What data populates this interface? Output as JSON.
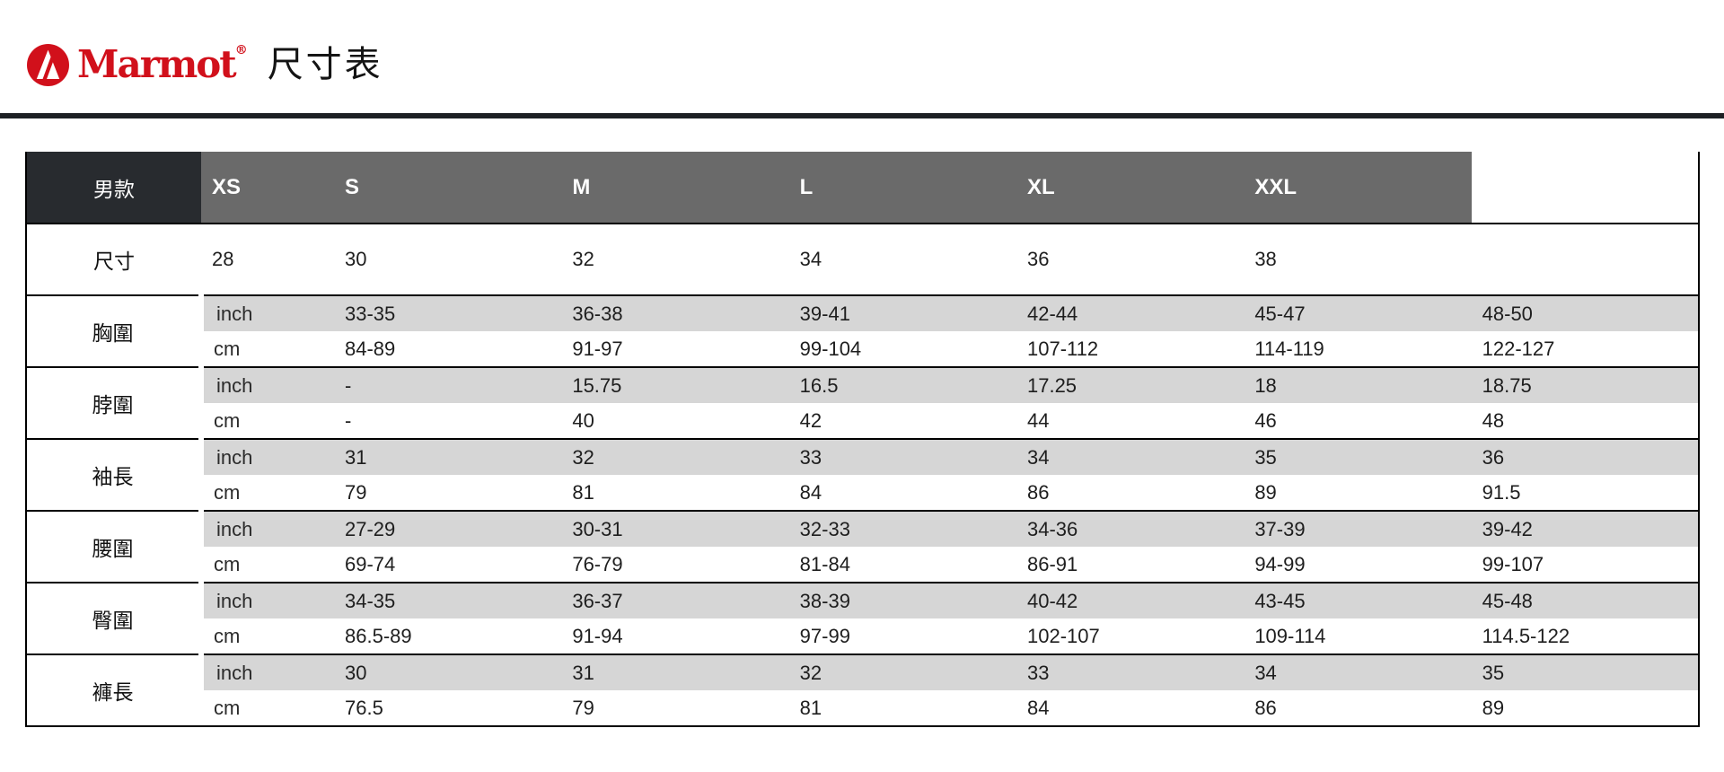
{
  "header": {
    "brand": "Marmot",
    "registered": "®",
    "title": "尺寸表"
  },
  "colors": {
    "brand_red": "#d1101b",
    "header_dark": "#282b2f",
    "header_gray": "#6a6a6a",
    "band_gray": "#d6d6d6",
    "rule_dark": "#1d2024"
  },
  "chart_data": {
    "type": "table",
    "title": "尺寸表",
    "corner_label": "男款",
    "columns": [
      "XS",
      "S",
      "M",
      "L",
      "XL",
      "XXL"
    ],
    "size_row": {
      "label": "尺寸",
      "values": [
        "28",
        "30",
        "32",
        "34",
        "36",
        "38"
      ]
    },
    "sections": [
      {
        "label": "胸圍",
        "rows": [
          {
            "unit": "inch",
            "values": [
              "33-35",
              "36-38",
              "39-41",
              "42-44",
              "45-47",
              "48-50"
            ]
          },
          {
            "unit": "cm",
            "values": [
              "84-89",
              "91-97",
              "99-104",
              "107-112",
              "114-119",
              "122-127"
            ]
          }
        ]
      },
      {
        "label": "脖圍",
        "rows": [
          {
            "unit": "inch",
            "values": [
              "-",
              "15.75",
              "16.5",
              "17.25",
              "18",
              "18.75"
            ]
          },
          {
            "unit": "cm",
            "values": [
              "-",
              "40",
              "42",
              "44",
              "46",
              "48"
            ]
          }
        ]
      },
      {
        "label": "袖長",
        "rows": [
          {
            "unit": "inch",
            "values": [
              "31",
              "32",
              "33",
              "34",
              "35",
              "36"
            ]
          },
          {
            "unit": "cm",
            "values": [
              "79",
              "81",
              "84",
              "86",
              "89",
              "91.5"
            ]
          }
        ]
      },
      {
        "label": "腰圍",
        "rows": [
          {
            "unit": "inch",
            "values": [
              "27-29",
              "30-31",
              "32-33",
              "34-36",
              "37-39",
              "39-42"
            ]
          },
          {
            "unit": "cm",
            "values": [
              "69-74",
              "76-79",
              "81-84",
              "86-91",
              "94-99",
              "99-107"
            ]
          }
        ]
      },
      {
        "label": "臀圍",
        "rows": [
          {
            "unit": "inch",
            "values": [
              "34-35",
              "36-37",
              "38-39",
              "40-42",
              "43-45",
              "45-48"
            ]
          },
          {
            "unit": "cm",
            "values": [
              "86.5-89",
              "91-94",
              "97-99",
              "102-107",
              "109-114",
              "114.5-122"
            ]
          }
        ]
      },
      {
        "label": "褲長",
        "rows": [
          {
            "unit": "inch",
            "values": [
              "30",
              "31",
              "32",
              "33",
              "34",
              "35"
            ]
          },
          {
            "unit": "cm",
            "values": [
              "76.5",
              "79",
              "81",
              "84",
              "86",
              "89"
            ]
          }
        ]
      }
    ]
  }
}
